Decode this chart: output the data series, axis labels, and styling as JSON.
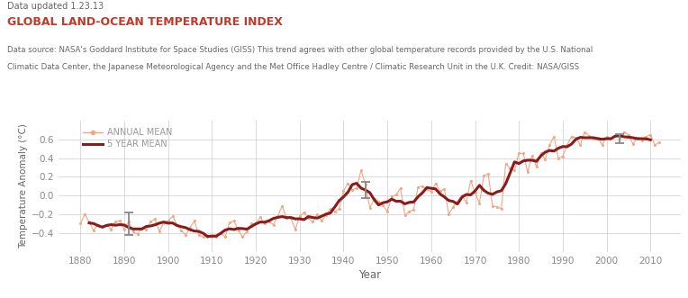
{
  "title": "GLOBAL LAND-OCEAN TEMPERATURE INDEX",
  "subtitle": "Data updated 1.23.13",
  "source_text_1": "Data source: NASA's Goddard Institute for Space Studies (GISS) This trend agrees with other global temperature records provided by the U.S. National",
  "source_text_2": "Climatic Data Center, the Japanese Meteorological Agency and the Met Office Hadley Centre / Climatic Research Unit in the U.K. Credit: NASA/GISS",
  "xlabel": "Year",
  "ylabel": "Temperature Anomaly (°C)",
  "xlim": [
    1875,
    2017
  ],
  "ylim": [
    -0.6,
    0.8
  ],
  "yticks": [
    -0.4,
    -0.2,
    0.0,
    0.2,
    0.4,
    0.6
  ],
  "xticks": [
    1880,
    1890,
    1900,
    1910,
    1920,
    1930,
    1940,
    1950,
    1960,
    1970,
    1980,
    1990,
    2000,
    2010
  ],
  "annual_color": "#f4a582",
  "mean5_color": "#8b1a1a",
  "grid_color": "#cccccc",
  "title_color": "#c0392b",
  "text_color": "#555555",
  "bg_color": "#ffffff",
  "legend_annual": "ANNUAL MEAN",
  "legend_5year": "5 YEAR MEAN",
  "annual_years": [
    1880,
    1881,
    1882,
    1883,
    1884,
    1885,
    1886,
    1887,
    1888,
    1889,
    1890,
    1891,
    1892,
    1893,
    1894,
    1895,
    1896,
    1897,
    1898,
    1899,
    1900,
    1901,
    1902,
    1903,
    1904,
    1905,
    1906,
    1907,
    1908,
    1909,
    1910,
    1911,
    1912,
    1913,
    1914,
    1915,
    1916,
    1917,
    1918,
    1919,
    1920,
    1921,
    1922,
    1923,
    1924,
    1925,
    1926,
    1927,
    1928,
    1929,
    1930,
    1931,
    1932,
    1933,
    1934,
    1935,
    1936,
    1937,
    1938,
    1939,
    1940,
    1941,
    1942,
    1943,
    1944,
    1945,
    1946,
    1947,
    1948,
    1949,
    1950,
    1951,
    1952,
    1953,
    1954,
    1955,
    1956,
    1957,
    1958,
    1959,
    1960,
    1961,
    1962,
    1963,
    1964,
    1965,
    1966,
    1967,
    1968,
    1969,
    1970,
    1971,
    1972,
    1973,
    1974,
    1975,
    1976,
    1977,
    1978,
    1979,
    1980,
    1981,
    1982,
    1983,
    1984,
    1985,
    1986,
    1987,
    1988,
    1989,
    1990,
    1991,
    1992,
    1993,
    1994,
    1995,
    1996,
    1997,
    1998,
    1999,
    2000,
    2001,
    2002,
    2003,
    2004,
    2005,
    2006,
    2007,
    2008,
    2009,
    2010,
    2011,
    2012
  ],
  "annual_vals": [
    -0.3,
    -0.2,
    -0.28,
    -0.37,
    -0.31,
    -0.33,
    -0.31,
    -0.36,
    -0.28,
    -0.27,
    -0.36,
    -0.28,
    -0.38,
    -0.41,
    -0.35,
    -0.36,
    -0.28,
    -0.25,
    -0.38,
    -0.29,
    -0.27,
    -0.22,
    -0.31,
    -0.37,
    -0.42,
    -0.34,
    -0.27,
    -0.42,
    -0.44,
    -0.44,
    -0.44,
    -0.44,
    -0.4,
    -0.44,
    -0.29,
    -0.27,
    -0.37,
    -0.44,
    -0.38,
    -0.3,
    -0.3,
    -0.23,
    -0.3,
    -0.28,
    -0.31,
    -0.22,
    -0.11,
    -0.24,
    -0.24,
    -0.36,
    -0.22,
    -0.18,
    -0.24,
    -0.28,
    -0.2,
    -0.27,
    -0.21,
    -0.14,
    -0.17,
    -0.14,
    0.05,
    0.13,
    0.06,
    0.08,
    0.27,
    0.12,
    -0.13,
    -0.04,
    -0.06,
    -0.1,
    -0.17,
    -0.01,
    0.01,
    0.08,
    -0.21,
    -0.17,
    -0.15,
    0.09,
    0.1,
    0.07,
    0.04,
    0.13,
    0.05,
    0.07,
    -0.2,
    -0.12,
    -0.06,
    0.0,
    -0.07,
    0.16,
    0.03,
    -0.08,
    0.21,
    0.23,
    -0.11,
    -0.12,
    -0.14,
    0.34,
    0.29,
    0.27,
    0.45,
    0.45,
    0.25,
    0.43,
    0.31,
    0.45,
    0.39,
    0.54,
    0.63,
    0.4,
    0.42,
    0.54,
    0.63,
    0.62,
    0.54,
    0.68,
    0.64,
    0.61,
    0.62,
    0.54,
    0.63,
    0.61,
    0.64,
    0.62,
    0.68,
    0.65,
    0.55,
    0.62,
    0.59,
    0.63,
    0.65,
    0.54,
    0.57
  ],
  "error_bars": [
    {
      "year": 1891,
      "val": -0.3,
      "err": 0.12
    },
    {
      "year": 1945,
      "val": 0.06,
      "err": 0.09
    },
    {
      "year": 2003,
      "val": 0.61,
      "err": 0.05
    }
  ]
}
